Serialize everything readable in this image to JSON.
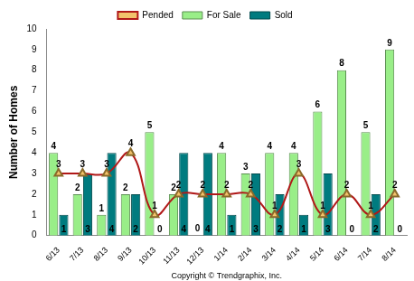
{
  "chart_data": {
    "type": "bar",
    "y_label": "Number of Homes",
    "annotation": "Copyright © Trendgraphix, Inc.",
    "categories": [
      "6/13",
      "7/13",
      "8/13",
      "9/13",
      "10/13",
      "11/13",
      "12/13",
      "1/14",
      "2/14",
      "3/14",
      "4/14",
      "5/14",
      "6/14",
      "7/14",
      "8/14"
    ],
    "series": [
      {
        "name": "For Sale",
        "type": "bar",
        "color": "#99ee88",
        "values": [
          4,
          2,
          1,
          2,
          5,
          2,
          0,
          4,
          3,
          4,
          4,
          6,
          8,
          5,
          9
        ]
      },
      {
        "name": "Sold",
        "type": "bar",
        "color": "#007b7f",
        "values": [
          1,
          3,
          4,
          2,
          0,
          4,
          4,
          1,
          3,
          2,
          1,
          3,
          0,
          2,
          0
        ]
      },
      {
        "name": "Pended",
        "type": "line",
        "color": "#b01818",
        "marker": "triangle",
        "values": [
          3,
          3,
          3,
          4,
          1,
          2,
          2,
          2,
          2,
          1,
          3,
          1,
          2,
          1,
          2
        ]
      }
    ],
    "ylim": [
      0,
      10
    ],
    "yticks": [
      0,
      1,
      2,
      3,
      4,
      5,
      6,
      7,
      8,
      9,
      10
    ],
    "grid": false,
    "legend": "top",
    "data_labels": true
  }
}
